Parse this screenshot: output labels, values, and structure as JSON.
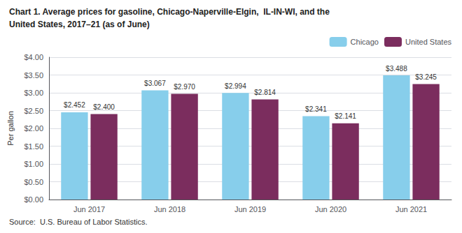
{
  "chart_data": {
    "type": "bar",
    "title": "Chart 1. Average prices for gasoline, Chicago-Naperville-Elgin,  IL-IN-WI, and the",
    "subtitle": "United States, 2017–21 (as of June)",
    "ylabel": "Per gallon",
    "annotations": [
      "Source:  U.S. Bureau of Labor Statistics."
    ],
    "categories": [
      "Jun 2017",
      "Jun 2018",
      "Jun 2019",
      "Jun 2020",
      "Jun 2021"
    ],
    "series": [
      {
        "name": "Chicago",
        "color": "#87CEEB",
        "values": [
          2.452,
          3.067,
          2.994,
          2.341,
          3.488
        ],
        "value_labels": [
          "$2.452",
          "$3.067",
          "$2.994",
          "$2.341",
          "$3.488"
        ]
      },
      {
        "name": "United States",
        "color": "#7B2D5E",
        "values": [
          2.4,
          2.97,
          2.814,
          2.141,
          3.245
        ],
        "value_labels": [
          "$2.400",
          "$2.970",
          "$2.814",
          "$2.141",
          "$3.245"
        ]
      }
    ],
    "ylim": [
      0,
      4.0
    ],
    "yticks": [
      {
        "value": 0.0,
        "label": "$0.00"
      },
      {
        "value": 0.5,
        "label": "$0.50"
      },
      {
        "value": 1.0,
        "label": "$1.00"
      },
      {
        "value": 1.5,
        "label": "$1.50"
      },
      {
        "value": 2.0,
        "label": "$2.00"
      },
      {
        "value": 2.5,
        "label": "$2.50"
      },
      {
        "value": 3.0,
        "label": "$3.00"
      },
      {
        "value": 3.5,
        "label": "$3.50"
      },
      {
        "value": 4.0,
        "label": "$4.00"
      }
    ],
    "grid": true,
    "legend": "upper right",
    "data_labels": true
  }
}
